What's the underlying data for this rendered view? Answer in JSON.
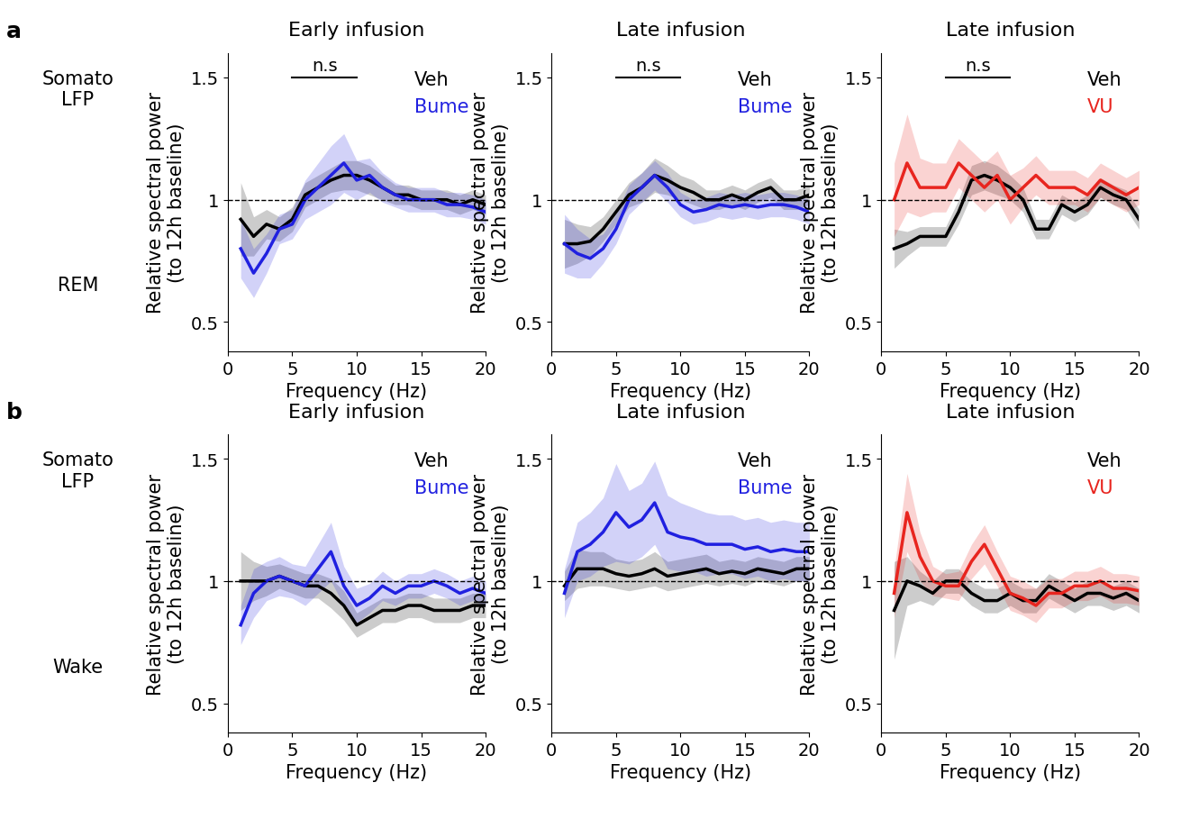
{
  "rows": [
    {
      "label": "a",
      "recording": "Somato\nLFP",
      "state": "REM"
    },
    {
      "label": "b",
      "recording": "Somato\nLFP",
      "state": "Wake"
    }
  ],
  "chart_data": [
    {
      "type": "line",
      "row": 0,
      "title": "Early infusion",
      "xlabel": "Frequency (Hz)",
      "ylabel": "Relative spectral power\n(to 12h baseline)",
      "x": [
        1,
        2,
        3,
        4,
        5,
        6,
        7,
        8,
        9,
        10,
        11,
        12,
        13,
        14,
        15,
        16,
        17,
        18,
        19,
        20
      ],
      "xlim": [
        0,
        20
      ],
      "xticks": [
        0,
        5,
        10,
        15,
        20
      ],
      "ylim": [
        0.38,
        1.6
      ],
      "yticks": [
        0.5,
        1,
        1.5
      ],
      "baseline": 1,
      "legend": "upper right",
      "annotations": [
        {
          "text": "n.s",
          "x": [
            5,
            10
          ],
          "y": 1.5
        }
      ],
      "series": [
        {
          "name": "Veh",
          "color": "#000000",
          "values": [
            0.92,
            0.85,
            0.9,
            0.88,
            0.92,
            1.02,
            1.05,
            1.08,
            1.1,
            1.1,
            1.08,
            1.05,
            1.02,
            1.02,
            1.0,
            1.0,
            1.0,
            0.98,
            1.0,
            0.98
          ],
          "spread": [
            0.15,
            0.08,
            0.06,
            0.05,
            0.05,
            0.05,
            0.05,
            0.05,
            0.06,
            0.06,
            0.06,
            0.05,
            0.04,
            0.04,
            0.04,
            0.04,
            0.04,
            0.04,
            0.04,
            0.04
          ]
        },
        {
          "name": "Bume",
          "color": "#2020e0",
          "values": [
            0.8,
            0.7,
            0.78,
            0.88,
            0.9,
            1.0,
            1.05,
            1.1,
            1.15,
            1.08,
            1.1,
            1.05,
            1.02,
            1.0,
            1.0,
            1.0,
            0.98,
            0.98,
            0.97,
            0.95
          ],
          "spread": [
            0.12,
            0.1,
            0.08,
            0.06,
            0.06,
            0.08,
            0.1,
            0.12,
            0.12,
            0.08,
            0.07,
            0.06,
            0.05,
            0.05,
            0.05,
            0.05,
            0.05,
            0.05,
            0.05,
            0.05
          ]
        }
      ]
    },
    {
      "type": "line",
      "row": 0,
      "title": "Late infusion",
      "xlabel": "Frequency (Hz)",
      "ylabel": "Relative spectral power\n(to 12h baseline)",
      "x": [
        1,
        2,
        3,
        4,
        5,
        6,
        7,
        8,
        9,
        10,
        11,
        12,
        13,
        14,
        15,
        16,
        17,
        18,
        19,
        20
      ],
      "xlim": [
        0,
        20
      ],
      "xticks": [
        0,
        5,
        10,
        15,
        20
      ],
      "ylim": [
        0.38,
        1.6
      ],
      "yticks": [
        0.5,
        1,
        1.5
      ],
      "baseline": 1,
      "legend": "upper right",
      "annotations": [
        {
          "text": "n.s",
          "x": [
            5,
            10
          ],
          "y": 1.5
        }
      ],
      "series": [
        {
          "name": "Veh",
          "color": "#000000",
          "values": [
            0.82,
            0.82,
            0.83,
            0.88,
            0.95,
            1.02,
            1.05,
            1.1,
            1.08,
            1.05,
            1.03,
            1.0,
            1.0,
            1.02,
            1.0,
            1.03,
            1.05,
            1.0,
            1.0,
            1.02
          ],
          "spread": [
            0.1,
            0.08,
            0.06,
            0.05,
            0.05,
            0.05,
            0.06,
            0.07,
            0.06,
            0.05,
            0.05,
            0.04,
            0.04,
            0.04,
            0.04,
            0.04,
            0.04,
            0.04,
            0.04,
            0.04
          ]
        },
        {
          "name": "Bume",
          "color": "#2020e0",
          "values": [
            0.82,
            0.78,
            0.76,
            0.8,
            0.88,
            1.0,
            1.05,
            1.1,
            1.05,
            0.98,
            0.95,
            0.96,
            0.98,
            0.97,
            0.98,
            0.97,
            0.98,
            0.98,
            0.97,
            0.95
          ],
          "spread": [
            0.12,
            0.1,
            0.08,
            0.06,
            0.06,
            0.06,
            0.06,
            0.06,
            0.06,
            0.05,
            0.05,
            0.05,
            0.05,
            0.05,
            0.05,
            0.05,
            0.05,
            0.05,
            0.05,
            0.05
          ]
        }
      ]
    },
    {
      "type": "line",
      "row": 0,
      "title": "Late infusion",
      "xlabel": "Frequency (Hz)",
      "ylabel": "Relative spectral power\n(to 12h baseline)",
      "x": [
        1,
        2,
        3,
        4,
        5,
        6,
        7,
        8,
        9,
        10,
        11,
        12,
        13,
        14,
        15,
        16,
        17,
        18,
        19,
        20
      ],
      "xlim": [
        0,
        20
      ],
      "xticks": [
        0,
        5,
        10,
        15,
        20
      ],
      "ylim": [
        0.38,
        1.6
      ],
      "yticks": [
        0.5,
        1,
        1.5
      ],
      "baseline": 1,
      "legend": "upper right",
      "annotations": [
        {
          "text": "n.s",
          "x": [
            5,
            10
          ],
          "y": 1.5
        }
      ],
      "series": [
        {
          "name": "Veh",
          "color": "#000000",
          "values": [
            0.8,
            0.82,
            0.85,
            0.85,
            0.85,
            0.95,
            1.08,
            1.1,
            1.08,
            1.05,
            1.0,
            0.88,
            0.88,
            0.98,
            0.95,
            0.98,
            1.05,
            1.02,
            1.0,
            0.92
          ],
          "spread": [
            0.08,
            0.05,
            0.04,
            0.04,
            0.04,
            0.05,
            0.06,
            0.06,
            0.06,
            0.05,
            0.05,
            0.04,
            0.04,
            0.04,
            0.04,
            0.04,
            0.04,
            0.04,
            0.04,
            0.04
          ]
        },
        {
          "name": "VU",
          "color": "#e8251f",
          "values": [
            1.0,
            1.15,
            1.05,
            1.05,
            1.05,
            1.15,
            1.1,
            1.05,
            1.1,
            1.0,
            1.05,
            1.1,
            1.05,
            1.05,
            1.05,
            1.02,
            1.08,
            1.05,
            1.02,
            1.05
          ],
          "spread": [
            0.15,
            0.2,
            0.12,
            0.1,
            0.1,
            0.1,
            0.1,
            0.1,
            0.1,
            0.1,
            0.08,
            0.08,
            0.07,
            0.07,
            0.07,
            0.07,
            0.07,
            0.07,
            0.07,
            0.07
          ]
        }
      ]
    },
    {
      "type": "line",
      "row": 1,
      "title": "Early infusion",
      "xlabel": "Frequency (Hz)",
      "ylabel": "Relative spectral power\n(to 12h baseline)",
      "x": [
        1,
        2,
        3,
        4,
        5,
        6,
        7,
        8,
        9,
        10,
        11,
        12,
        13,
        14,
        15,
        16,
        17,
        18,
        19,
        20
      ],
      "xlim": [
        0,
        20
      ],
      "xticks": [
        0,
        5,
        10,
        15,
        20
      ],
      "ylim": [
        0.38,
        1.6
      ],
      "yticks": [
        0.5,
        1,
        1.5
      ],
      "baseline": 1,
      "legend": "upper right",
      "series": [
        {
          "name": "Veh",
          "color": "#000000",
          "values": [
            1.0,
            1.0,
            1.0,
            1.02,
            1.0,
            0.98,
            0.98,
            0.95,
            0.9,
            0.82,
            0.85,
            0.88,
            0.88,
            0.9,
            0.9,
            0.88,
            0.88,
            0.88,
            0.9,
            0.9
          ],
          "spread": [
            0.12,
            0.08,
            0.06,
            0.05,
            0.05,
            0.05,
            0.05,
            0.06,
            0.06,
            0.05,
            0.05,
            0.05,
            0.05,
            0.05,
            0.05,
            0.05,
            0.05,
            0.05,
            0.05,
            0.05
          ]
        },
        {
          "name": "Bume",
          "color": "#2020e0",
          "values": [
            0.82,
            0.95,
            1.0,
            1.02,
            1.0,
            0.98,
            1.05,
            1.12,
            0.98,
            0.9,
            0.93,
            0.98,
            0.95,
            0.98,
            0.98,
            1.0,
            0.98,
            0.95,
            0.97,
            0.95
          ],
          "spread": [
            0.08,
            0.1,
            0.08,
            0.08,
            0.07,
            0.08,
            0.1,
            0.12,
            0.08,
            0.07,
            0.06,
            0.06,
            0.05,
            0.05,
            0.05,
            0.05,
            0.05,
            0.05,
            0.05,
            0.05
          ]
        }
      ]
    },
    {
      "type": "line",
      "row": 1,
      "title": "Late infusion",
      "xlabel": "Frequency (Hz)",
      "ylabel": "Relative spectral power\n(to 12h baseline)",
      "x": [
        1,
        2,
        3,
        4,
        5,
        6,
        7,
        8,
        9,
        10,
        11,
        12,
        13,
        14,
        15,
        16,
        17,
        18,
        19,
        20
      ],
      "xlim": [
        0,
        20
      ],
      "xticks": [
        0,
        5,
        10,
        15,
        20
      ],
      "ylim": [
        0.38,
        1.6
      ],
      "yticks": [
        0.5,
        1,
        1.5
      ],
      "baseline": 1,
      "legend": "upper right",
      "series": [
        {
          "name": "Veh",
          "color": "#000000",
          "values": [
            0.98,
            1.05,
            1.05,
            1.05,
            1.03,
            1.02,
            1.03,
            1.05,
            1.02,
            1.03,
            1.04,
            1.05,
            1.03,
            1.04,
            1.03,
            1.05,
            1.04,
            1.03,
            1.05,
            1.05
          ],
          "spread": [
            0.06,
            0.08,
            0.07,
            0.07,
            0.06,
            0.06,
            0.06,
            0.07,
            0.06,
            0.06,
            0.06,
            0.06,
            0.05,
            0.05,
            0.05,
            0.05,
            0.05,
            0.05,
            0.05,
            0.05
          ]
        },
        {
          "name": "Bume",
          "color": "#2020e0",
          "values": [
            0.95,
            1.12,
            1.15,
            1.2,
            1.28,
            1.22,
            1.25,
            1.32,
            1.2,
            1.18,
            1.17,
            1.15,
            1.15,
            1.15,
            1.13,
            1.14,
            1.12,
            1.13,
            1.12,
            1.12
          ],
          "spread": [
            0.1,
            0.12,
            0.13,
            0.14,
            0.2,
            0.15,
            0.15,
            0.17,
            0.15,
            0.14,
            0.13,
            0.13,
            0.12,
            0.12,
            0.12,
            0.12,
            0.12,
            0.12,
            0.12,
            0.12
          ]
        }
      ]
    },
    {
      "type": "line",
      "row": 1,
      "title": "Late infusion",
      "xlabel": "Frequency (Hz)",
      "ylabel": "Relative spectral power\n(to 12h baseline)",
      "x": [
        1,
        2,
        3,
        4,
        5,
        6,
        7,
        8,
        9,
        10,
        11,
        12,
        13,
        14,
        15,
        16,
        17,
        18,
        19,
        20
      ],
      "xlim": [
        0,
        20
      ],
      "xticks": [
        0,
        5,
        10,
        15,
        20
      ],
      "ylim": [
        0.38,
        1.6
      ],
      "yticks": [
        0.5,
        1,
        1.5
      ],
      "baseline": 1,
      "legend": "upper right",
      "series": [
        {
          "name": "Veh",
          "color": "#000000",
          "values": [
            0.88,
            1.0,
            0.98,
            0.95,
            1.0,
            1.0,
            0.95,
            0.92,
            0.92,
            0.95,
            0.92,
            0.92,
            0.98,
            0.95,
            0.92,
            0.95,
            0.95,
            0.93,
            0.95,
            0.92
          ],
          "spread": [
            0.2,
            0.1,
            0.06,
            0.05,
            0.05,
            0.05,
            0.05,
            0.05,
            0.05,
            0.05,
            0.05,
            0.05,
            0.05,
            0.05,
            0.05,
            0.05,
            0.05,
            0.05,
            0.05,
            0.05
          ]
        },
        {
          "name": "VU",
          "color": "#e8251f",
          "values": [
            0.95,
            1.28,
            1.1,
            1.0,
            0.98,
            0.98,
            1.08,
            1.15,
            1.05,
            0.95,
            0.93,
            0.9,
            0.95,
            0.95,
            0.98,
            0.98,
            1.0,
            0.97,
            0.97,
            0.96
          ],
          "spread": [
            0.1,
            0.16,
            0.1,
            0.06,
            0.05,
            0.06,
            0.07,
            0.08,
            0.07,
            0.07,
            0.07,
            0.07,
            0.06,
            0.06,
            0.06,
            0.06,
            0.06,
            0.06,
            0.06,
            0.06
          ]
        }
      ]
    }
  ]
}
